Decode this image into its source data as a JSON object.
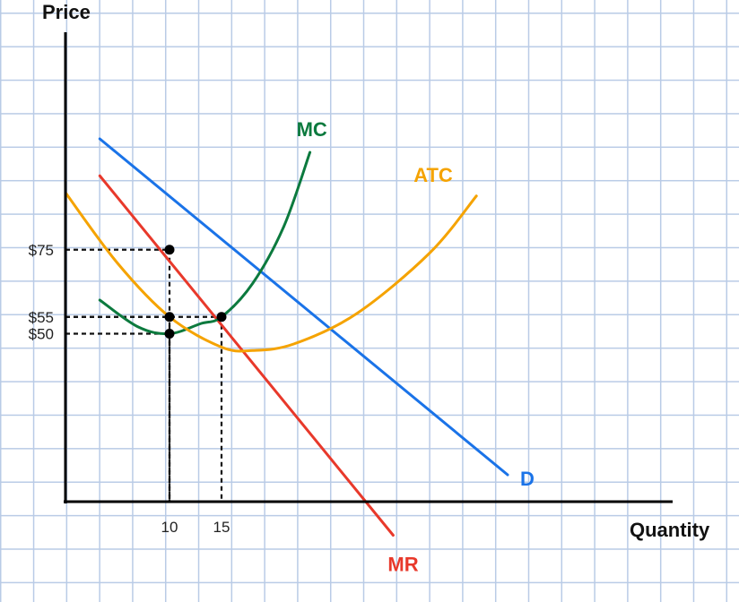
{
  "chart_data": {
    "type": "line",
    "xlabel": "Quantity",
    "ylabel": "Price",
    "x_ticks": [
      {
        "value": 10,
        "label": "10"
      },
      {
        "value": 15,
        "label": "15"
      }
    ],
    "y_ticks": [
      {
        "value": 75,
        "label": "$75"
      },
      {
        "value": 55,
        "label": "$55"
      },
      {
        "value": 50,
        "label": "$50"
      }
    ],
    "xlim": [
      0,
      59
    ],
    "ylim": [
      -7,
      135
    ],
    "grid": true,
    "series": [
      {
        "name": "D",
        "color": "#1a73e8",
        "points": [
          [
            3.3,
            108
          ],
          [
            42.5,
            8
          ]
        ]
      },
      {
        "name": "MR",
        "color": "#e8392b",
        "points": [
          [
            3.3,
            97
          ],
          [
            31.5,
            -10
          ]
        ]
      },
      {
        "name": "MC",
        "color": "#0c7a3e",
        "points": [
          [
            3.3,
            60
          ],
          [
            7,
            52
          ],
          [
            10,
            50
          ],
          [
            13,
            53
          ],
          [
            15,
            55
          ],
          [
            18,
            65
          ],
          [
            21,
            82
          ],
          [
            23.5,
            104
          ]
        ]
      },
      {
        "name": "ATC",
        "color": "#f5a300",
        "points": [
          [
            0,
            92
          ],
          [
            5,
            71
          ],
          [
            10,
            55
          ],
          [
            15,
            46
          ],
          [
            18,
            45
          ],
          [
            22,
            47
          ],
          [
            28,
            56
          ],
          [
            35,
            74
          ],
          [
            39.5,
            91
          ]
        ]
      }
    ],
    "points": [
      {
        "x": 10,
        "y": 75
      },
      {
        "x": 10,
        "y": 55
      },
      {
        "x": 10,
        "y": 50
      },
      {
        "x": 15,
        "y": 55
      }
    ],
    "guides": [
      {
        "x": 10,
        "y": 75
      },
      {
        "x": 10,
        "y": 55
      },
      {
        "x": 10,
        "y": 50
      },
      {
        "x": 15,
        "y": 55
      }
    ]
  }
}
